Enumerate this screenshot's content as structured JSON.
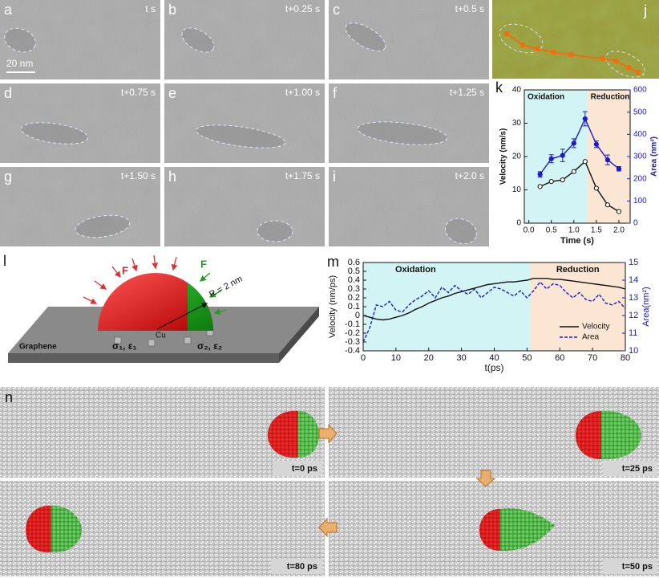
{
  "tem_panels": [
    {
      "letter": "a",
      "time": "t s"
    },
    {
      "letter": "b",
      "time": "t+0.25 s"
    },
    {
      "letter": "c",
      "time": "t+0.5 s"
    },
    {
      "letter": "d",
      "time": "t+0.75 s"
    },
    {
      "letter": "e",
      "time": "t+1.00 s"
    },
    {
      "letter": "f",
      "time": "t+1.25 s"
    },
    {
      "letter": "g",
      "time": "t+1.50 s"
    },
    {
      "letter": "h",
      "time": "t+1.75 s"
    },
    {
      "letter": "i",
      "time": "t+2.0 s"
    }
  ],
  "scale_bar": "20 nm",
  "panel_j": {
    "letter": "j"
  },
  "schematic": {
    "letter": "l",
    "force_left": "F",
    "force_right": "F",
    "radius": "R = 2 nm",
    "atom": "Cu",
    "substrate": "Graphene",
    "params_left": "σ₁, ε₁",
    "params_right": "σ₂, ε₂"
  },
  "md_panels": {
    "letter": "n",
    "times": [
      "t=0 ps",
      "t=25 ps",
      "t=80 ps",
      "t=50 ps"
    ]
  },
  "chart_data": [
    {
      "type": "line",
      "panel": "k",
      "x": [
        0.25,
        0.5,
        0.75,
        1.0,
        1.25,
        1.5,
        1.75,
        2.0
      ],
      "series": [
        {
          "name": "Velocity",
          "color": "#111111",
          "marker": "open",
          "values": [
            11,
            12.5,
            13,
            15.5,
            18.5,
            10.5,
            5.5,
            3.5
          ]
        },
        {
          "name": "Area",
          "color": "#1a1ad6",
          "marker": "filled",
          "axis": "y2",
          "values": [
            220,
            290,
            305,
            360,
            470,
            355,
            285,
            245
          ],
          "errors": [
            12,
            18,
            28,
            20,
            32,
            15,
            22,
            10
          ]
        }
      ],
      "regions": [
        {
          "label": "Oxidation",
          "from": -0.1,
          "to": 1.3,
          "color": "#d3f4f4"
        },
        {
          "label": "Reduction",
          "from": 1.3,
          "to": 2.25,
          "color": "#fbe6d4"
        }
      ],
      "xlabel": "Time (s)",
      "ylabel": "Velocity (nm/s)",
      "y2label": "Area (nm²)",
      "y2color": "#1a1ad6",
      "xlim": [
        -0.1,
        2.25
      ],
      "xticks": [
        {
          "value": 0,
          "label": "0.0"
        },
        0.5,
        {
          "value": 1,
          "label": "1.0"
        },
        1.5,
        {
          "value": 2,
          "label": "2.0"
        }
      ],
      "ylim": [
        0,
        40
      ],
      "yticks": [
        0,
        10,
        20,
        30,
        40
      ],
      "y2lim": [
        0,
        600
      ],
      "y2ticks": [
        0,
        100,
        200,
        300,
        400,
        500,
        600
      ]
    },
    {
      "type": "line",
      "panel": "m",
      "x": [
        0,
        2,
        4,
        6,
        8,
        10,
        12,
        14,
        16,
        18,
        20,
        22,
        24,
        26,
        28,
        30,
        32,
        34,
        36,
        38,
        40,
        42,
        44,
        46,
        48,
        50,
        52,
        54,
        56,
        58,
        60,
        62,
        64,
        66,
        68,
        70,
        72,
        74,
        76,
        78,
        80
      ],
      "series": [
        {
          "name": "Velocity",
          "color": "#111111",
          "values": [
            0,
            -0.02,
            -0.04,
            -0.05,
            -0.04,
            -0.02,
            0,
            0.03,
            0.07,
            0.1,
            0.14,
            0.17,
            0.2,
            0.22,
            0.25,
            0.27,
            0.29,
            0.31,
            0.33,
            0.35,
            0.36,
            0.37,
            0.38,
            0.38,
            0.39,
            0.4,
            0.42,
            0.42,
            0.42,
            0.41,
            0.41,
            0.4,
            0.39,
            0.38,
            0.37,
            0.36,
            0.35,
            0.34,
            0.33,
            0.32,
            0.3
          ]
        },
        {
          "name": "Area",
          "color": "#1a1ad6",
          "dash": true,
          "axis": "y2",
          "values": [
            10.5,
            11.3,
            12.6,
            12.5,
            12.8,
            12.3,
            12.2,
            12.6,
            12.9,
            13.1,
            13.4,
            13.0,
            13.6,
            13.3,
            13.7,
            13.4,
            13.2,
            13.5,
            13.0,
            13.3,
            13.6,
            13.5,
            13.3,
            13.1,
            13.4,
            13.0,
            13.4,
            13.9,
            13.5,
            13.8,
            13.7,
            13.3,
            13.0,
            13.3,
            12.9,
            12.8,
            13.2,
            12.7,
            12.6,
            12.8,
            12.4
          ]
        }
      ],
      "regions": [
        {
          "label": "Oxidation",
          "from": 0,
          "to": 51,
          "color": "#d3f4f4"
        },
        {
          "label": "Reduction",
          "from": 51,
          "to": 80,
          "color": "#fbe6d4"
        }
      ],
      "legend": "lower right",
      "xlabel": "t(ps)",
      "ylabel": "Velocity (nm/ps)",
      "y2label": "Area(nm²)",
      "y2color": "#1a1ad6",
      "xlim": [
        0,
        80
      ],
      "xticks": [
        0,
        10,
        20,
        30,
        40,
        50,
        60,
        70,
        80
      ],
      "ylim": [
        -0.4,
        0.6
      ],
      "yticks": [
        -0.4,
        -0.3,
        -0.2,
        -0.1,
        0,
        0.1,
        0.2,
        0.3,
        0.4,
        0.5,
        0.6
      ],
      "y2lim": [
        10,
        15
      ],
      "y2ticks": [
        10,
        11,
        12,
        13,
        14,
        15
      ]
    }
  ]
}
